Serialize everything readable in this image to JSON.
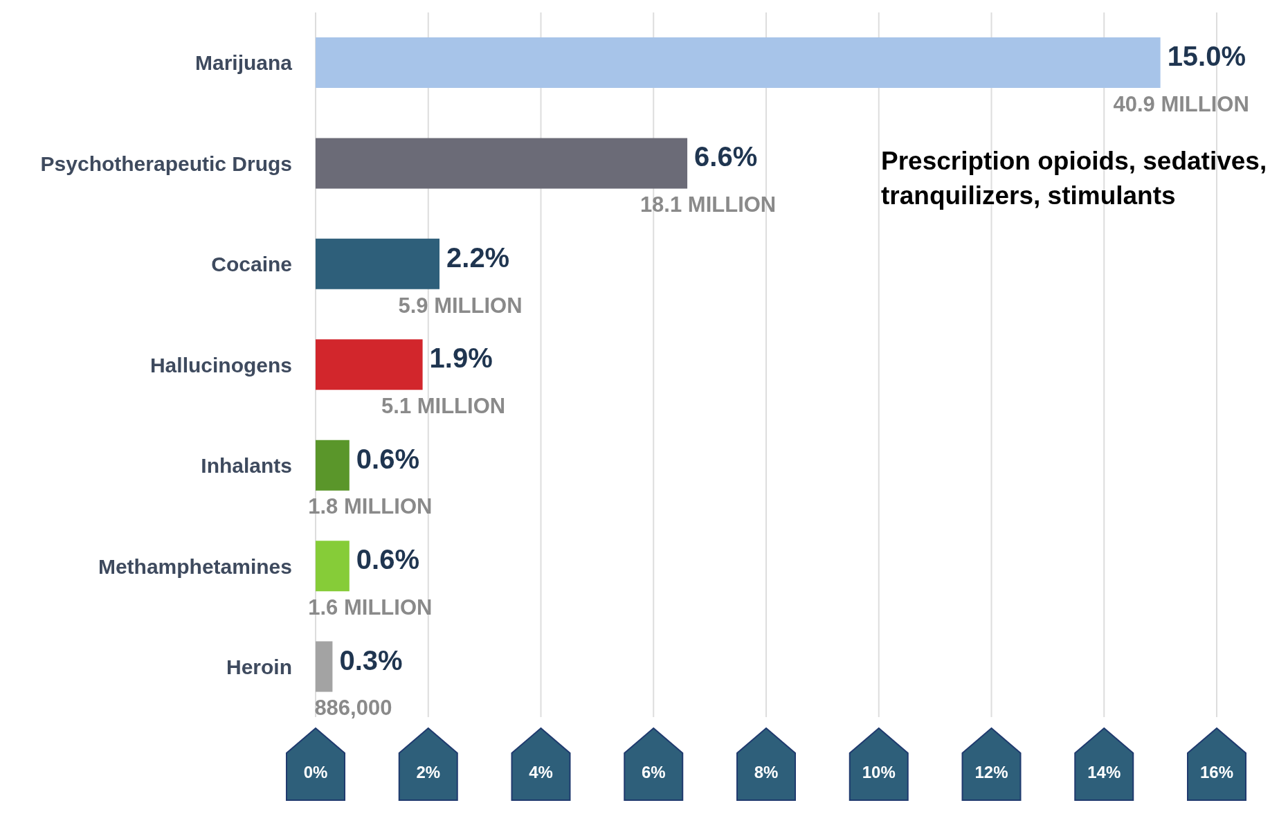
{
  "chart_data": {
    "type": "bar",
    "orientation": "horizontal",
    "categories": [
      "Marijuana",
      "Psychotherapeutic Drugs",
      "Cocaine",
      "Hallucinogens",
      "Inhalants",
      "Methamphetamines",
      "Heroin"
    ],
    "values": [
      15.0,
      6.6,
      2.2,
      1.9,
      0.6,
      0.6,
      0.3
    ],
    "colors": [
      "#a7c4e9",
      "#6b6b77",
      "#2e5f7a",
      "#d2262c",
      "#5a962a",
      "#86cc38",
      "#a3a3a3"
    ],
    "value_labels": [
      "15.0%",
      "6.6%",
      "2.2%",
      "1.9%",
      "0.6%",
      "0.6%",
      "0.3%"
    ],
    "xlim": [
      0,
      16
    ],
    "xticks": [
      {
        "value": 0,
        "label": "0%"
      },
      {
        "value": 2,
        "label": "2%"
      },
      {
        "value": 4,
        "label": "4%"
      },
      {
        "value": 6,
        "label": "6%"
      },
      {
        "value": 8,
        "label": "8%"
      },
      {
        "value": 10,
        "label": "10%"
      },
      {
        "value": 12,
        "label": "12%"
      },
      {
        "value": 14,
        "label": "14%"
      },
      {
        "value": 16,
        "label": "16%"
      }
    ],
    "grid": "x",
    "annotations": [
      {
        "text": "40.9 MILLION",
        "x": 15.0,
        "y": "Marijuana"
      },
      {
        "text": "18.1 MILLION",
        "x": 6.6,
        "y": "Psychotherapeutic Drugs"
      },
      {
        "text": "5.9 MILLION",
        "x": 2.2,
        "y": "Cocaine"
      },
      {
        "text": "5.1 MILLION",
        "x": 1.9,
        "y": "Hallucinogens"
      },
      {
        "text": "1.8 MILLION",
        "x": 0.6,
        "y": "Inhalants"
      },
      {
        "text": "1.6 MILLION",
        "x": 0.6,
        "y": "Methamphetamines"
      },
      {
        "text": "886,000",
        "x": 0.3,
        "y": "Heroin"
      },
      "Prescription opioids, sedatives, tranquilizers, stimulants"
    ]
  }
}
